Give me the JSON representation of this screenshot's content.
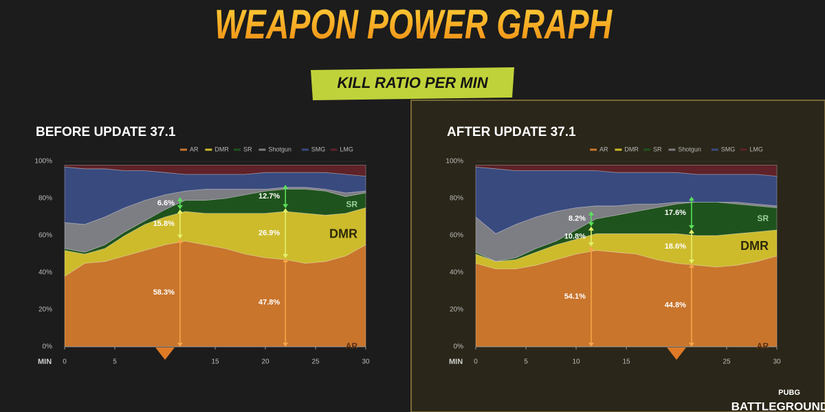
{
  "title": "WEAPON POWER GRAPH",
  "subtitle": "KILL RATIO PER MIN",
  "logo": {
    "top": "PUBG",
    "bottom": "BATTLEGROUNDS"
  },
  "chart_data": [
    {
      "type": "area",
      "stacked": true,
      "title": "BEFORE UPDATE 37.1",
      "x": [
        0,
        2,
        4,
        6,
        8,
        10,
        12,
        14,
        16,
        18,
        20,
        22,
        24,
        26,
        28,
        30
      ],
      "xlim": [
        0,
        30
      ],
      "xticks": [
        0,
        5,
        15,
        20,
        25,
        30
      ],
      "xlabel": "MIN",
      "ylim": [
        0,
        100
      ],
      "yticks": [
        {
          "value": 0,
          "label": "0%"
        },
        {
          "value": 20,
          "label": "20%"
        },
        {
          "value": 40,
          "label": "40%"
        },
        {
          "value": 60,
          "label": "60%"
        },
        {
          "value": 80,
          "label": "80%"
        },
        {
          "value": 100,
          "label": "100%"
        }
      ],
      "series": [
        {
          "name": "AR",
          "color": "#c9752c",
          "values": [
            38,
            45,
            46,
            49,
            52,
            55,
            57,
            55,
            53,
            50,
            48,
            47,
            45,
            46,
            49,
            55
          ]
        },
        {
          "name": "DMR",
          "color": "#cdbb2c",
          "values": [
            14,
            5,
            7,
            11,
            14,
            15,
            16,
            17,
            19,
            22,
            24,
            26,
            27,
            25,
            23,
            20
          ]
        },
        {
          "name": "SR",
          "color": "#1f531d",
          "values": [
            1,
            1,
            2,
            2,
            2,
            4,
            6,
            7,
            8,
            10,
            12,
            12,
            13,
            13,
            9,
            8
          ]
        },
        {
          "name": "Shotgun",
          "color": "#7d7d84",
          "values": [
            14,
            15,
            15,
            13,
            11,
            8,
            5,
            6,
            5,
            3,
            1,
            1,
            1,
            1,
            2,
            1
          ]
        },
        {
          "name": "SMG",
          "color": "#394a7e",
          "values": [
            30,
            30,
            26,
            20,
            16,
            12,
            9,
            8,
            8,
            8,
            9,
            8,
            8,
            9,
            10,
            8
          ]
        },
        {
          "name": "LMG",
          "color": "#5e2228",
          "values": [
            1,
            2,
            2,
            3,
            3,
            4,
            5,
            5,
            5,
            5,
            4,
            4,
            4,
            4,
            5,
            6
          ]
        }
      ],
      "annotations": [
        {
          "x": 11.5,
          "values": [
            58.3,
            15.8,
            6.6
          ],
          "value_labels": [
            "58.3%",
            "15.8%",
            "6.6%"
          ]
        },
        {
          "x": 22,
          "values": [
            47.8,
            26.9,
            12.7
          ],
          "value_labels": [
            "47.8%",
            "26.9%",
            "12.7%"
          ]
        }
      ],
      "annotation_colors": [
        "#f6a54a",
        "#e4f06c",
        "#5ae05c"
      ],
      "highlight_x": 10
    },
    {
      "type": "area",
      "stacked": true,
      "title": "AFTER UPDATE 37.1",
      "x": [
        0,
        2,
        4,
        6,
        8,
        10,
        12,
        14,
        16,
        18,
        20,
        22,
        24,
        26,
        28,
        30
      ],
      "xlim": [
        0,
        30
      ],
      "xticks": [
        0,
        5,
        10,
        15,
        25,
        30
      ],
      "xlabel": "MIN",
      "ylim": [
        0,
        100
      ],
      "yticks": [
        {
          "value": 0,
          "label": "0%"
        },
        {
          "value": 20,
          "label": "20%"
        },
        {
          "value": 40,
          "label": "40%"
        },
        {
          "value": 60,
          "label": "60%"
        },
        {
          "value": 80,
          "label": "80%"
        },
        {
          "value": 100,
          "label": "100%"
        }
      ],
      "series": [
        {
          "name": "AR",
          "color": "#c9752c",
          "values": [
            45,
            42,
            42,
            44,
            47,
            50,
            52,
            51,
            50,
            47,
            45,
            44,
            43,
            44,
            46,
            49
          ]
        },
        {
          "name": "DMR",
          "color": "#cdbb2c",
          "values": [
            5,
            4,
            5,
            7,
            8,
            8,
            9,
            10,
            11,
            14,
            16,
            16,
            17,
            17,
            16,
            14
          ]
        },
        {
          "name": "SR",
          "color": "#1f531d",
          "values": [
            1,
            0,
            1,
            2,
            2,
            5,
            8,
            10,
            12,
            14,
            16,
            18,
            18,
            16,
            14,
            12
          ]
        },
        {
          "name": "Shotgun",
          "color": "#7d7d84",
          "values": [
            19,
            15,
            18,
            17,
            16,
            12,
            7,
            5,
            4,
            2,
            1,
            0,
            0,
            1,
            1,
            1
          ]
        },
        {
          "name": "SMG",
          "color": "#394a7e",
          "values": [
            27,
            35,
            29,
            25,
            22,
            20,
            19,
            18,
            17,
            17,
            16,
            15,
            15,
            15,
            16,
            16
          ]
        },
        {
          "name": "LMG",
          "color": "#5e2228",
          "values": [
            1,
            2,
            3,
            3,
            3,
            3,
            3,
            4,
            4,
            4,
            4,
            5,
            5,
            5,
            5,
            6
          ]
        }
      ],
      "annotations": [
        {
          "x": 11.5,
          "values": [
            54.1,
            10.8,
            8.2
          ],
          "value_labels": [
            "54.1%",
            "10.8%",
            "8.2%"
          ]
        },
        {
          "x": 21.5,
          "values": [
            44.8,
            18.6,
            17.6
          ],
          "value_labels": [
            "44.8%",
            "18.6%",
            "17.6%"
          ]
        }
      ],
      "annotation_colors": [
        "#f6a54a",
        "#e4f06c",
        "#5ae05c"
      ],
      "highlight_x": 20
    }
  ]
}
